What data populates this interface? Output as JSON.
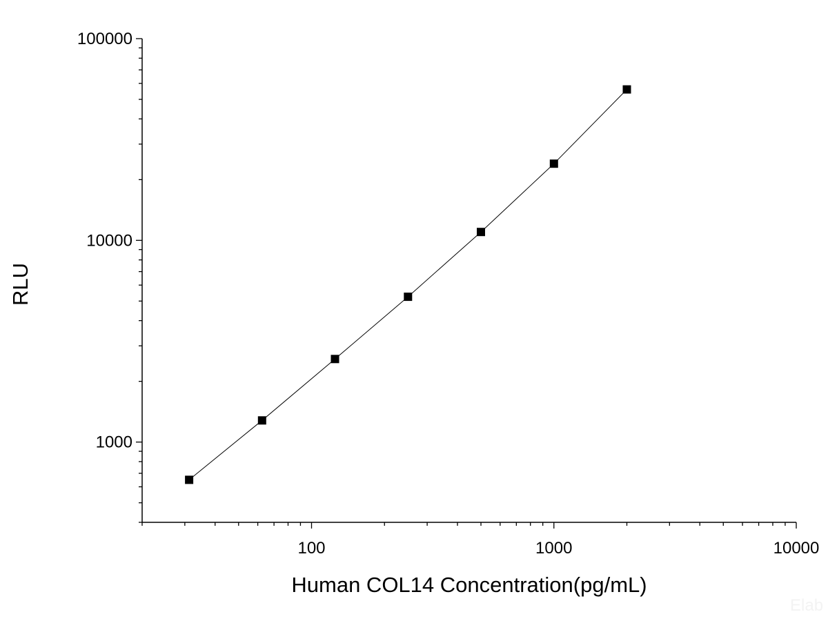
{
  "chart_data": {
    "type": "scatter",
    "title": "",
    "xlabel": "Human COL14 Concentration(pg/mL)",
    "ylabel": "RLU",
    "x_scale": "log",
    "y_scale": "log",
    "xlim": [
      20,
      10000
    ],
    "ylim": [
      400,
      100000
    ],
    "x_tick_labels": [
      "100",
      "1000",
      "10000"
    ],
    "y_tick_labels": [
      "1000",
      "10000",
      "100000"
    ],
    "grid": false,
    "legend": "none",
    "marker": "filled-square",
    "connected_by_line": true,
    "series": [
      {
        "x": [
          31.25,
          62.5,
          125,
          250,
          500,
          1000,
          2000
        ],
        "y": [
          650,
          1280,
          2580,
          5250,
          11000,
          24000,
          56000
        ]
      }
    ],
    "watermark": "Elab"
  },
  "colors": {
    "background": "#ffffff",
    "axes": "#000000",
    "line": "#000000",
    "marker": "#000000"
  }
}
